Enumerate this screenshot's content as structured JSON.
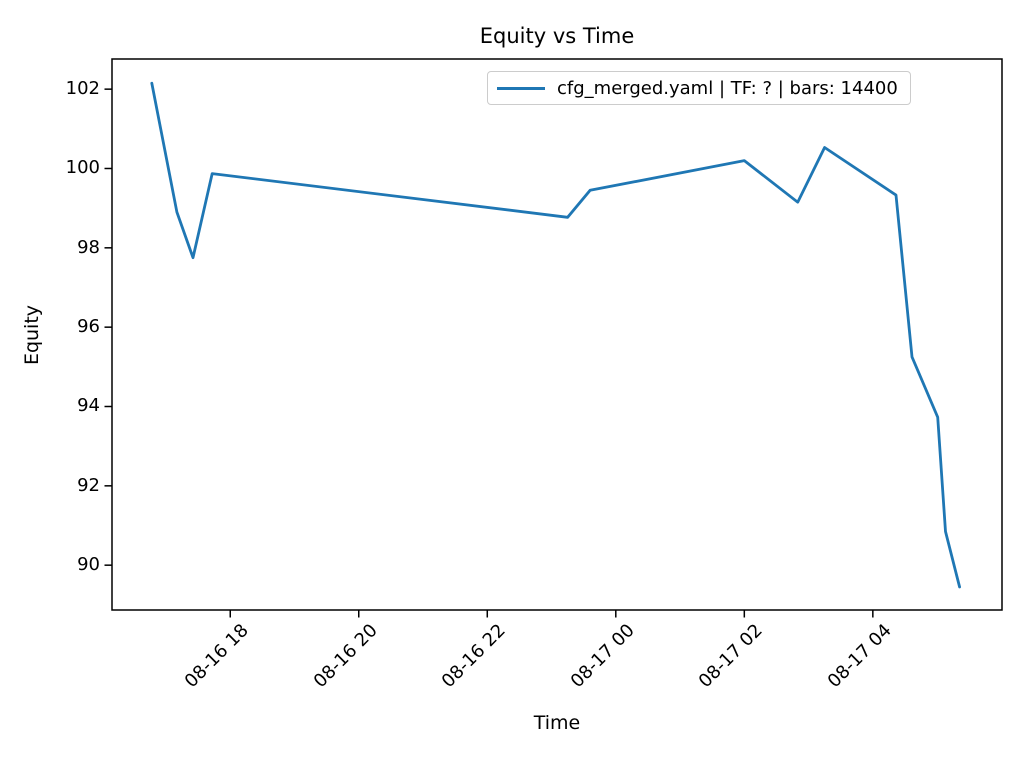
{
  "figure": {
    "background": "#ffffff",
    "text_color": "#000000"
  },
  "chart_data": {
    "type": "line",
    "title": "Equity vs Time",
    "xlabel": "Time",
    "ylabel": "Equity",
    "grid": false,
    "legend_position": "upper right",
    "line_color": "#1f77b4",
    "axes_edge_color": "#000000",
    "legend_edge_color": "#cccccc",
    "x_ticks": [
      {
        "hours": 18,
        "label": "08-16 18"
      },
      {
        "hours": 20,
        "label": "08-16 20"
      },
      {
        "hours": 22,
        "label": "08-16 22"
      },
      {
        "hours": 24,
        "label": "08-17 00"
      },
      {
        "hours": 26,
        "label": "08-17 02"
      },
      {
        "hours": 28,
        "label": "08-17 04"
      }
    ],
    "y_ticks": [
      90,
      92,
      94,
      96,
      98,
      100,
      102
    ],
    "xlim_hours": [
      16.16,
      30.01
    ],
    "ylim": [
      88.87,
      102.76
    ],
    "series": [
      {
        "name": "cfg_merged.yaml | TF: ? | bars: 14400",
        "points_hours_equity": [
          [
            16.78,
            102.15
          ],
          [
            17.17,
            98.9
          ],
          [
            17.42,
            97.75
          ],
          [
            17.72,
            99.87
          ],
          [
            23.25,
            98.77
          ],
          [
            23.6,
            99.45
          ],
          [
            26.0,
            100.2
          ],
          [
            26.83,
            99.15
          ],
          [
            27.25,
            100.53
          ],
          [
            28.36,
            99.33
          ],
          [
            28.61,
            95.25
          ],
          [
            29.01,
            93.73
          ],
          [
            29.13,
            90.85
          ],
          [
            29.35,
            89.45
          ]
        ]
      }
    ]
  }
}
